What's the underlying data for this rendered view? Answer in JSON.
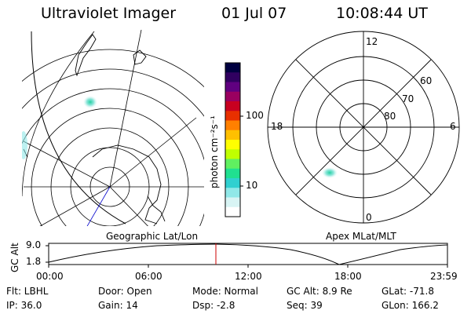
{
  "header": {
    "title": "Ultraviolet Imager",
    "date": "01 Jul 07",
    "time": "10:08:44 UT"
  },
  "left_map": {
    "label": "Geographic Lat/Lon"
  },
  "right_map": {
    "label": "Apex MLat/MLT",
    "mlt_labels": [
      "12",
      "18",
      "6",
      "0"
    ],
    "lat_labels": [
      "60",
      "70",
      "80"
    ]
  },
  "colorbar": {
    "unit_label": "photon cm⁻²s⁻¹",
    "tick_labels": [
      "100",
      "10"
    ],
    "colors": [
      "#000040",
      "#300060",
      "#600080",
      "#9a0060",
      "#c80020",
      "#e83000",
      "#ff8000",
      "#ffc000",
      "#ffff00",
      "#c0ff00",
      "#60f060",
      "#20e090",
      "#30d0d0",
      "#90e8e8",
      "#d8f4f4",
      "#ffffff"
    ]
  },
  "altitude_panel": {
    "axis_label": "GC Alt",
    "y_ticks": [
      "9.0",
      "1.8"
    ],
    "x_ticks": [
      "00:00",
      "06:00",
      "12:00",
      "18:00",
      "23:59"
    ],
    "current_marker_color": "#cc0000"
  },
  "info": {
    "filter": "Flt: LBHL",
    "ip": "IP: 36.0",
    "door": "Door: Open",
    "gain": "Gain: 14",
    "mode": "Mode: Normal",
    "dsp": "Dsp:    -2.8",
    "gc_alt": "GC Alt: 8.9 Re",
    "seq": "Seq: 39",
    "glat": "GLat: -71.8",
    "glon": "GLon: 166.2"
  }
}
